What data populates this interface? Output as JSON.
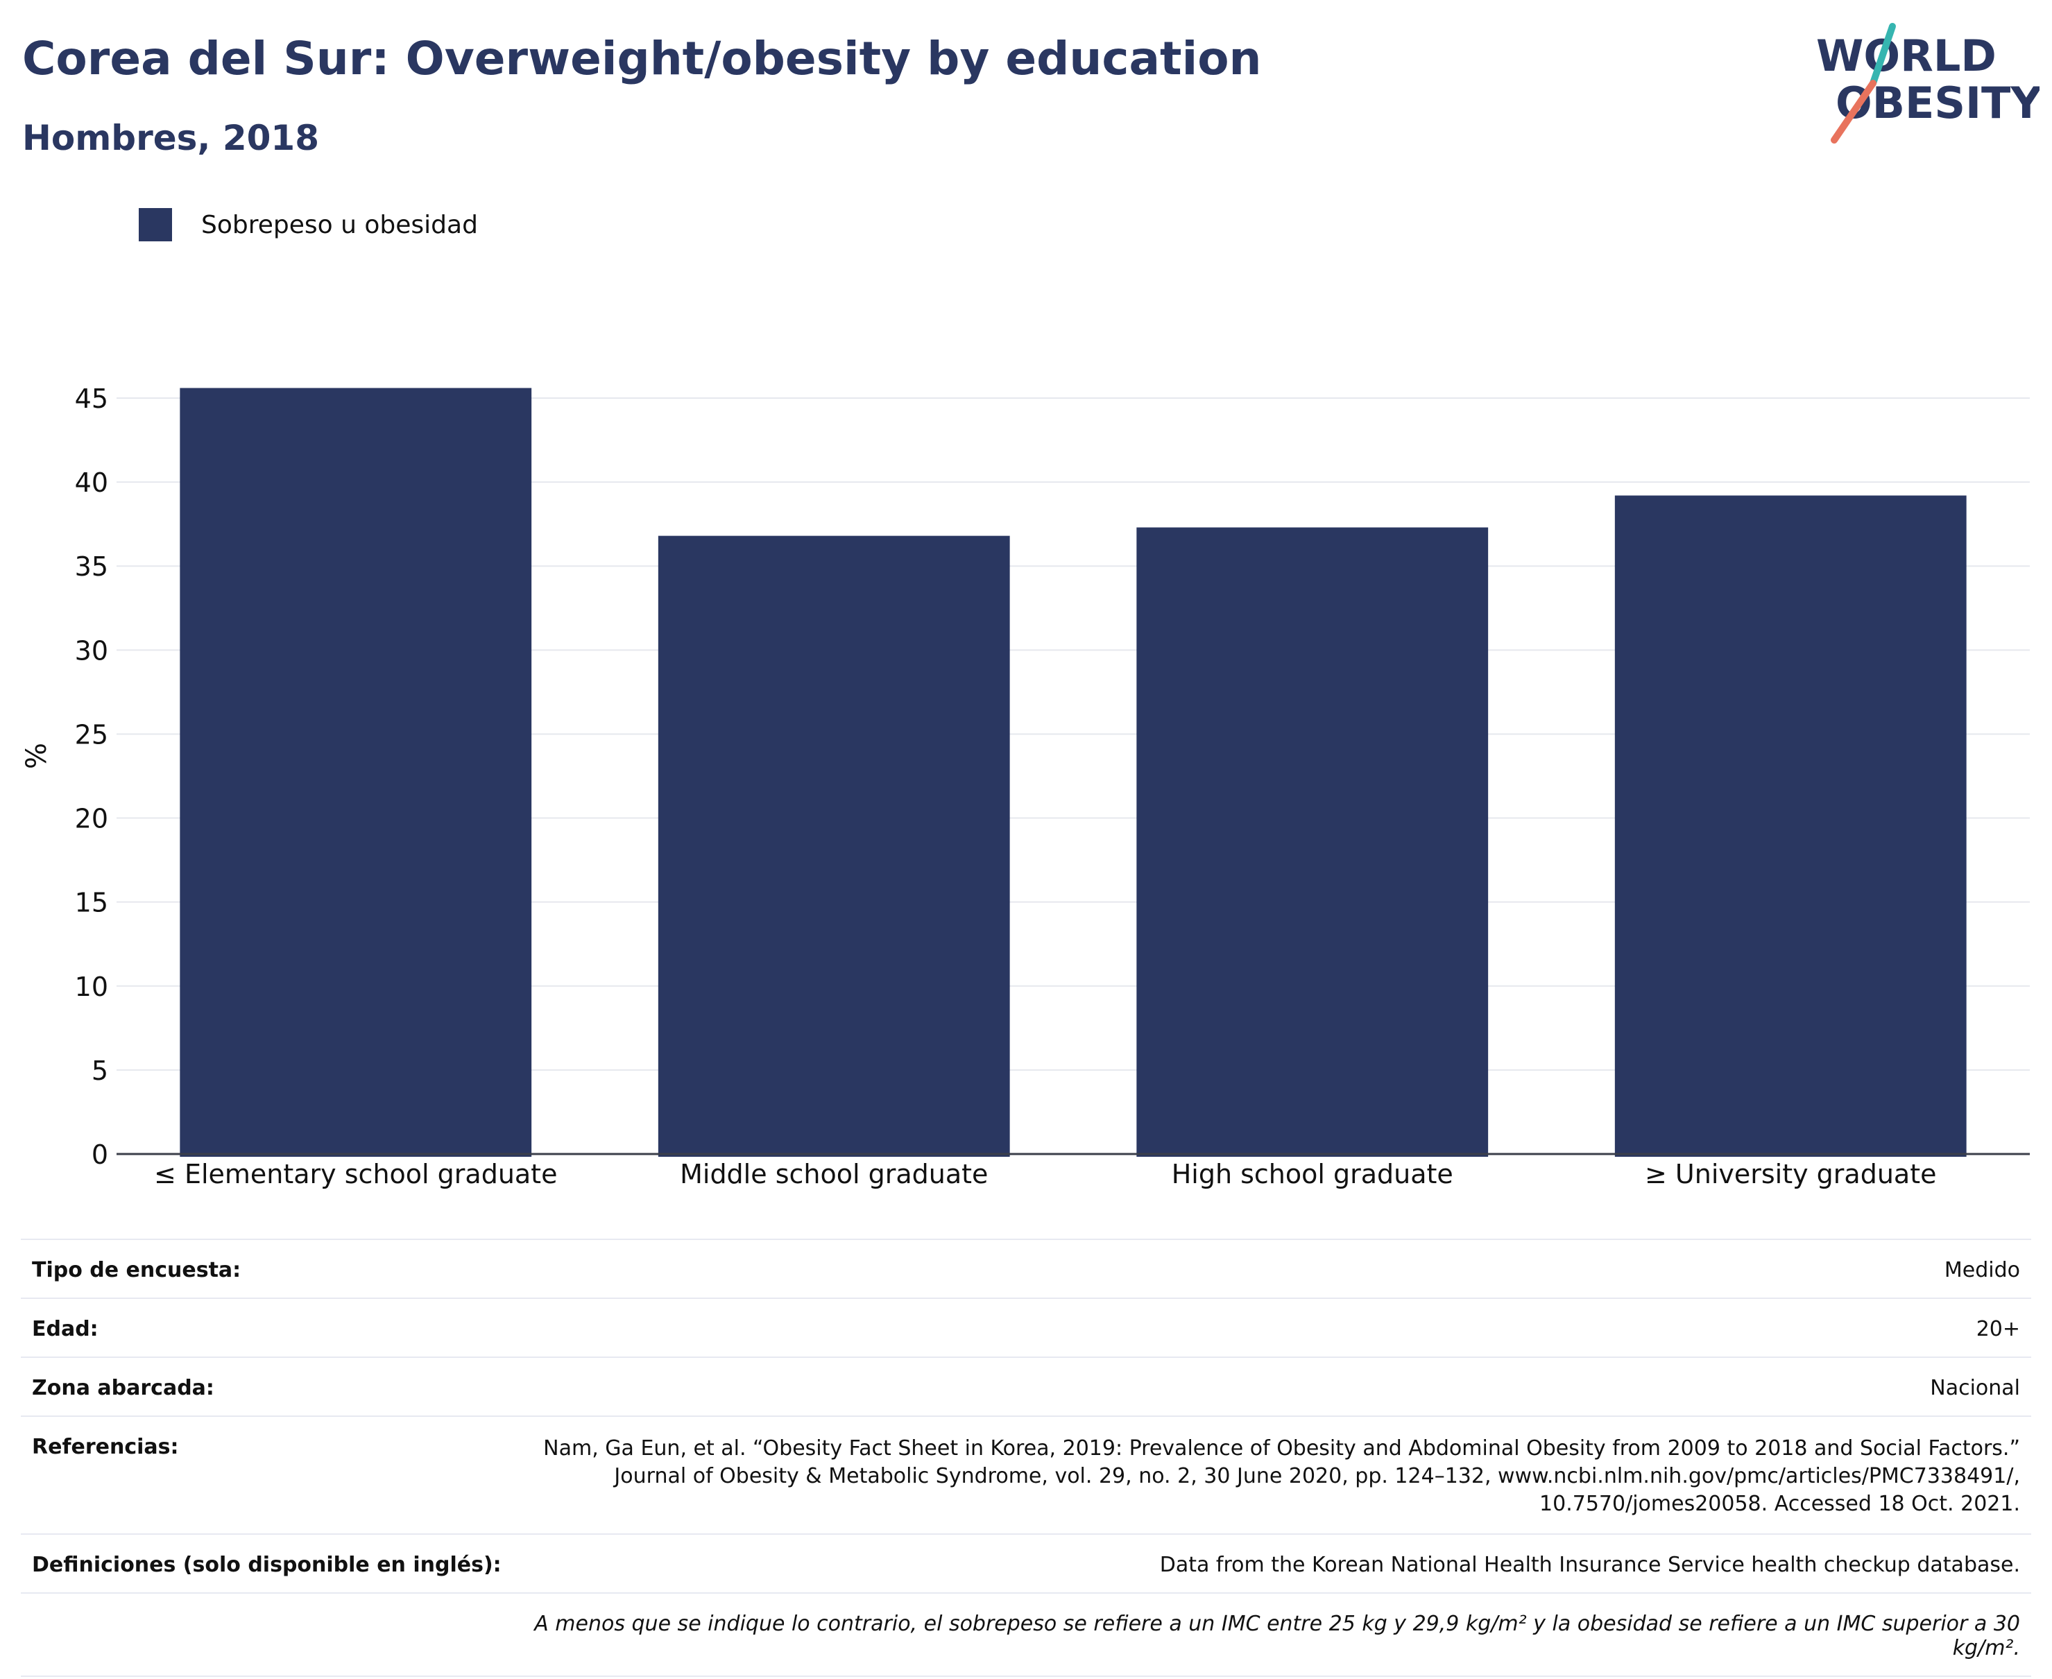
{
  "header": {
    "title": "Corea del Sur: Overweight/obesity by education",
    "subtitle": "Hombres, 2018"
  },
  "logo": {
    "line1": "WORLD",
    "line2": "OBESITY",
    "slash_colors": [
      "#36b5b0",
      "#e8735d"
    ]
  },
  "legend": {
    "label": "Sobrepeso u obesidad",
    "color": "#2a3761"
  },
  "chart_data": {
    "type": "bar",
    "categories": [
      "≤ Elementary school graduate",
      "Middle school graduate",
      "High school graduate",
      "≥ University graduate"
    ],
    "series": [
      {
        "name": "Sobrepeso u obesidad",
        "values": [
          45.6,
          36.8,
          37.3,
          39.2
        ],
        "color": "#2a3761"
      }
    ],
    "ylabel": "%",
    "ylim": [
      0,
      45
    ],
    "yticks": [
      0,
      5,
      10,
      15,
      20,
      25,
      30,
      35,
      40,
      45
    ],
    "grid": true,
    "legend_position": "top-left"
  },
  "info": {
    "rows": [
      {
        "label": "Tipo de encuesta:",
        "value": "Medido"
      },
      {
        "label": "Edad:",
        "value": "20+"
      },
      {
        "label": "Zona abarcada:",
        "value": "Nacional"
      },
      {
        "label": "Referencias:",
        "value": "Nam, Ga Eun, et al. “Obesity Fact Sheet in Korea, 2019: Prevalence of Obesity and Abdominal Obesity from 2009 to 2018 and Social Factors.” Journal of Obesity & Metabolic Syndrome, vol. 29, no. 2, 30 June 2020, pp. 124–132, www.ncbi.nlm.nih.gov/pmc/articles/PMC7338491/, 10.7570/jomes20058. Accessed 18 Oct. 2021."
      },
      {
        "label": "Definiciones (solo disponible en inglés):",
        "value": "Data from the Korean National Health Insurance Service health checkup database."
      }
    ],
    "footnote": "A menos que se indique lo contrario, el sobrepeso se refiere a un IMC entre 25 kg y 29,9 kg/m² y la obesidad se refiere a un IMC superior a 30 kg/m²."
  }
}
